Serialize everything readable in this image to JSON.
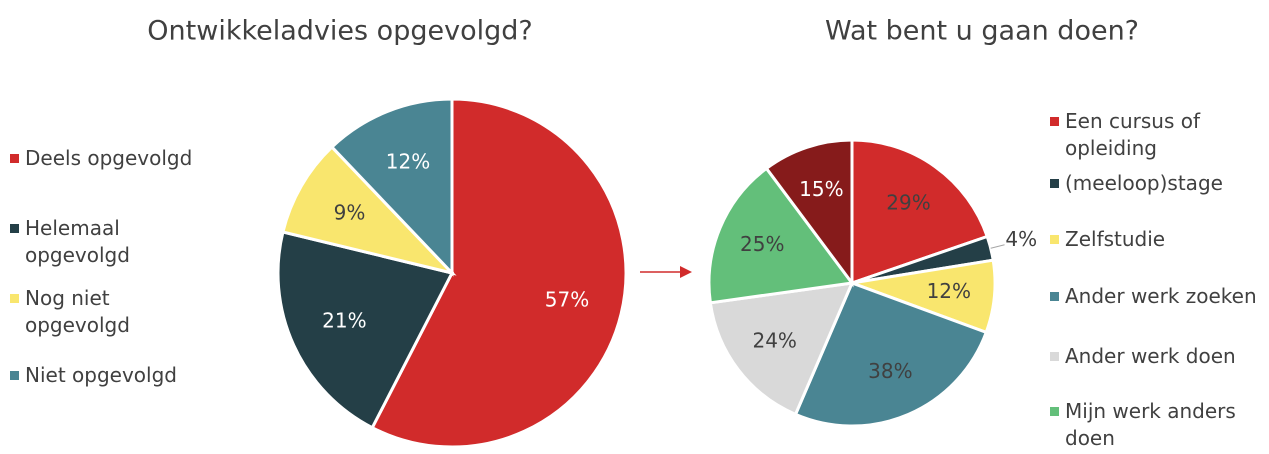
{
  "chart_data": [
    {
      "type": "pie",
      "title": "Ontwikkeladvies opgevolgd?",
      "categories": [
        "Deels opgevolgd",
        "Helemaal opgevolgd",
        "Nog niet opgevolgd",
        "Niet opgevolgd"
      ],
      "values": [
        57,
        21,
        9,
        12
      ],
      "value_labels": [
        "57%",
        "21%",
        "9%",
        "12%"
      ],
      "colors": [
        "#d12b2b",
        "#243f47",
        "#f9e66e",
        "#4a8593"
      ]
    },
    {
      "type": "pie",
      "title": "Wat bent u gaan doen?",
      "categories": [
        "Een cursus of opleiding",
        "(meeloop)stage",
        "Zelfstudie",
        "Ander werk zoeken",
        "Ander werk doen",
        "Mijn werk anders doen",
        null
      ],
      "values": [
        29,
        4,
        12,
        38,
        24,
        25,
        15
      ],
      "value_labels": [
        "29%",
        "4%",
        "12%",
        "38%",
        "24%",
        "25%",
        "15%"
      ],
      "colors": [
        "#d12b2b",
        "#243f47",
        "#f9e66e",
        "#4a8593",
        "#d9d9d9",
        "#63bf7a",
        "#861b1b"
      ]
    }
  ]
}
